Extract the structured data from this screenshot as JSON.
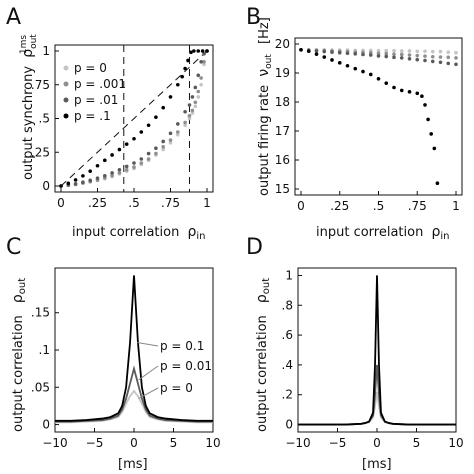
{
  "panels": {
    "A": {
      "letter": "A",
      "xlabel": "input correlation",
      "xlabel_symbol": "ρ",
      "xlabel_symbol_sub": "in",
      "ylabel": "output synchrony",
      "ylabel_symbol": "ρ",
      "ylabel_symbol_sub": "out",
      "ylabel_symbol_sup": "1ms",
      "xticks": [
        "0",
        ".25",
        ".5",
        ".75",
        "1"
      ],
      "yticks": [
        "0",
        ".25",
        ".5",
        ".75",
        "1"
      ],
      "legend": [
        "p = 0",
        "p = .001",
        "p = .01",
        "p = .1"
      ]
    },
    "B": {
      "letter": "B",
      "xlabel": "input correlation",
      "xlabel_symbol": "ρ",
      "xlabel_symbol_sub": "in",
      "ylabel": "output firing rate",
      "ylabel_symbol": "ν",
      "ylabel_symbol_sub": "out",
      "ylabel_unit": "[Hz]",
      "xticks": [
        "0",
        ".25",
        ".5",
        ".75",
        "1"
      ],
      "yticks": [
        "15",
        "16",
        "17",
        "18",
        "19",
        "20"
      ]
    },
    "C": {
      "letter": "C",
      "xlabel": "[ms]",
      "ylabel": "output correlation",
      "ylabel_symbol": "ρ",
      "ylabel_symbol_sub": "out",
      "xticks": [
        "−10",
        "−5",
        "0",
        "5",
        "10"
      ],
      "yticks": [
        "0",
        ".05",
        ".1",
        ".15"
      ],
      "labels": [
        "p = 0.1",
        "p = 0.01",
        "p = 0"
      ]
    },
    "D": {
      "letter": "D",
      "xlabel": "[ms]",
      "ylabel": "output correlation",
      "ylabel_symbol": "ρ",
      "ylabel_symbol_sub": "out",
      "xticks": [
        "−10",
        "−5",
        "0",
        "5",
        "10"
      ],
      "yticks": [
        "0",
        ".2",
        ".4",
        ".6",
        ".8",
        "1"
      ]
    }
  },
  "colors": {
    "p0": "#c4c4c4",
    "p001": "#8f8f8f",
    "p01": "#5a5a5a",
    "p1": "#000000"
  },
  "chart_data": [
    {
      "panel": "A",
      "type": "scatter",
      "xlim": [
        0,
        1
      ],
      "ylim": [
        0,
        1
      ],
      "reference_lines": [
        {
          "kind": "diagonal",
          "from": [
            0,
            0
          ],
          "to": [
            1,
            1
          ]
        },
        {
          "kind": "vertical",
          "x": 0.43
        },
        {
          "kind": "vertical",
          "x": 0.88
        }
      ],
      "series": [
        {
          "name": "p = 0",
          "color": "#c4c4c4",
          "x": [
            0,
            0.05,
            0.1,
            0.15,
            0.2,
            0.25,
            0.3,
            0.35,
            0.4,
            0.45,
            0.5,
            0.55,
            0.6,
            0.65,
            0.7,
            0.75,
            0.8,
            0.85,
            0.88,
            0.9,
            0.92,
            0.94,
            0.96,
            0.98,
            1.0
          ],
          "y": [
            0,
            0.005,
            0.01,
            0.02,
            0.03,
            0.04,
            0.055,
            0.07,
            0.09,
            0.11,
            0.13,
            0.16,
            0.19,
            0.23,
            0.27,
            0.32,
            0.38,
            0.45,
            0.5,
            0.54,
            0.59,
            0.66,
            0.75,
            0.9,
            1.0
          ]
        },
        {
          "name": "p = .001",
          "color": "#8f8f8f",
          "x": [
            0,
            0.05,
            0.1,
            0.15,
            0.2,
            0.25,
            0.3,
            0.35,
            0.4,
            0.45,
            0.5,
            0.55,
            0.6,
            0.65,
            0.7,
            0.75,
            0.8,
            0.85,
            0.88,
            0.9,
            0.92,
            0.94,
            0.96,
            0.98,
            1.0
          ],
          "y": [
            0,
            0.006,
            0.012,
            0.022,
            0.033,
            0.045,
            0.06,
            0.077,
            0.097,
            0.12,
            0.14,
            0.17,
            0.2,
            0.24,
            0.29,
            0.34,
            0.4,
            0.47,
            0.52,
            0.56,
            0.62,
            0.7,
            0.8,
            0.92,
            1.0
          ]
        },
        {
          "name": "p = .01",
          "color": "#5a5a5a",
          "x": [
            0,
            0.05,
            0.1,
            0.15,
            0.2,
            0.25,
            0.3,
            0.35,
            0.4,
            0.45,
            0.5,
            0.55,
            0.6,
            0.65,
            0.7,
            0.75,
            0.8,
            0.85,
            0.88,
            0.9,
            0.92,
            0.94,
            0.96,
            0.98,
            1.0
          ],
          "y": [
            0,
            0.008,
            0.016,
            0.028,
            0.042,
            0.058,
            0.076,
            0.097,
            0.12,
            0.145,
            0.17,
            0.2,
            0.24,
            0.28,
            0.33,
            0.39,
            0.46,
            0.55,
            0.6,
            0.66,
            0.73,
            0.82,
            0.92,
            0.98,
            1.0
          ]
        },
        {
          "name": "p = .1",
          "color": "#000000",
          "x": [
            0,
            0.05,
            0.1,
            0.15,
            0.2,
            0.25,
            0.3,
            0.35,
            0.4,
            0.45,
            0.5,
            0.55,
            0.6,
            0.65,
            0.7,
            0.75,
            0.8,
            0.83,
            0.85,
            0.87,
            0.89,
            0.91,
            0.94,
            0.97,
            1.0
          ],
          "y": [
            0,
            0.02,
            0.045,
            0.075,
            0.11,
            0.15,
            0.19,
            0.23,
            0.27,
            0.31,
            0.35,
            0.4,
            0.45,
            0.51,
            0.58,
            0.66,
            0.75,
            0.81,
            0.87,
            0.93,
            0.99,
            1.0,
            1.0,
            1.0,
            1.0
          ]
        }
      ]
    },
    {
      "panel": "B",
      "type": "scatter",
      "xlim": [
        0,
        1
      ],
      "ylim": [
        15,
        20
      ],
      "series": [
        {
          "name": "p = 0",
          "color": "#c4c4c4",
          "x": [
            0,
            0.05,
            0.1,
            0.15,
            0.2,
            0.25,
            0.3,
            0.35,
            0.4,
            0.45,
            0.5,
            0.55,
            0.6,
            0.65,
            0.7,
            0.75,
            0.8,
            0.85,
            0.9,
            0.95,
            1.0
          ],
          "y": [
            19.8,
            19.8,
            19.8,
            19.8,
            19.79,
            19.79,
            19.79,
            19.78,
            19.78,
            19.78,
            19.77,
            19.77,
            19.77,
            19.76,
            19.76,
            19.75,
            19.75,
            19.74,
            19.74,
            19.72,
            19.7
          ]
        },
        {
          "name": "p = .001",
          "color": "#8f8f8f",
          "x": [
            0,
            0.05,
            0.1,
            0.15,
            0.2,
            0.25,
            0.3,
            0.35,
            0.4,
            0.45,
            0.5,
            0.55,
            0.6,
            0.65,
            0.7,
            0.75,
            0.8,
            0.85,
            0.9,
            0.95,
            1.0
          ],
          "y": [
            19.8,
            19.79,
            19.78,
            19.77,
            19.76,
            19.75,
            19.74,
            19.72,
            19.71,
            19.7,
            19.68,
            19.67,
            19.65,
            19.64,
            19.62,
            19.6,
            19.58,
            19.56,
            19.55,
            19.54,
            19.52
          ]
        },
        {
          "name": "p = .01",
          "color": "#5a5a5a",
          "x": [
            0,
            0.05,
            0.1,
            0.15,
            0.2,
            0.25,
            0.3,
            0.35,
            0.4,
            0.45,
            0.5,
            0.55,
            0.6,
            0.65,
            0.7,
            0.75,
            0.8,
            0.85,
            0.9,
            0.95,
            1.0
          ],
          "y": [
            19.8,
            19.78,
            19.76,
            19.74,
            19.72,
            19.7,
            19.68,
            19.66,
            19.64,
            19.62,
            19.59,
            19.57,
            19.54,
            19.52,
            19.49,
            19.46,
            19.43,
            19.4,
            19.37,
            19.33,
            19.3
          ]
        },
        {
          "name": "p = .1",
          "color": "#000000",
          "x": [
            0,
            0.05,
            0.1,
            0.15,
            0.2,
            0.25,
            0.3,
            0.35,
            0.4,
            0.45,
            0.5,
            0.55,
            0.6,
            0.65,
            0.7,
            0.75,
            0.78,
            0.8,
            0.82,
            0.84,
            0.86,
            0.88
          ],
          "y": [
            19.8,
            19.75,
            19.65,
            19.55,
            19.45,
            19.35,
            19.25,
            19.15,
            19.05,
            18.95,
            18.8,
            18.65,
            18.5,
            18.4,
            18.35,
            18.3,
            18.2,
            17.9,
            17.4,
            16.9,
            16.4,
            15.2
          ]
        }
      ]
    },
    {
      "panel": "C",
      "type": "line",
      "xlim": [
        -10,
        10
      ],
      "ylim": [
        -0.01,
        0.21
      ],
      "x": [
        -10,
        -8,
        -6,
        -4,
        -3,
        -2,
        -1.5,
        -1,
        -0.5,
        0,
        0.5,
        1,
        1.5,
        2,
        3,
        4,
        6,
        8,
        10
      ],
      "series": [
        {
          "name": "p = 0.1",
          "color": "#000000",
          "values": [
            0.005,
            0.005,
            0.006,
            0.008,
            0.01,
            0.015,
            0.025,
            0.05,
            0.11,
            0.2,
            0.11,
            0.05,
            0.025,
            0.015,
            0.01,
            0.008,
            0.006,
            0.005,
            0.005
          ]
        },
        {
          "name": "p = 0.01",
          "color": "#5a5a5a",
          "values": [
            0.004,
            0.004,
            0.005,
            0.006,
            0.008,
            0.012,
            0.02,
            0.035,
            0.055,
            0.075,
            0.055,
            0.035,
            0.02,
            0.012,
            0.008,
            0.006,
            0.005,
            0.004,
            0.004
          ]
        },
        {
          "name": "p = 0",
          "color": "#c4c4c4",
          "values": [
            0.003,
            0.003,
            0.004,
            0.005,
            0.007,
            0.01,
            0.017,
            0.028,
            0.038,
            0.045,
            0.038,
            0.028,
            0.017,
            0.01,
            0.007,
            0.005,
            0.004,
            0.003,
            0.003
          ]
        }
      ]
    },
    {
      "panel": "D",
      "type": "line",
      "xlim": [
        -10,
        10
      ],
      "ylim": [
        -0.05,
        1.05
      ],
      "x": [
        -10,
        -8,
        -6,
        -4,
        -2,
        -1.5,
        -1,
        -0.5,
        -0.25,
        0,
        0.25,
        0.5,
        1,
        1.5,
        2,
        4,
        6,
        8,
        10
      ],
      "series": [
        {
          "name": "p = 0.1",
          "color": "#000000",
          "values": [
            0,
            0,
            0,
            0,
            0.005,
            0.01,
            0.02,
            0.08,
            0.4,
            1.0,
            0.4,
            0.08,
            0.02,
            0.01,
            0.005,
            0,
            0,
            0,
            0
          ]
        },
        {
          "name": "p = 0.01",
          "color": "#5a5a5a",
          "values": [
            0,
            0,
            0,
            0,
            0.005,
            0.01,
            0.02,
            0.06,
            0.2,
            0.4,
            0.2,
            0.06,
            0.02,
            0.01,
            0.005,
            0,
            0,
            0,
            0
          ]
        },
        {
          "name": "p = 0",
          "color": "#c4c4c4",
          "values": [
            0,
            0,
            0,
            0,
            0.004,
            0.008,
            0.015,
            0.05,
            0.12,
            0.22,
            0.12,
            0.05,
            0.015,
            0.008,
            0.004,
            0,
            0,
            0,
            0
          ]
        }
      ]
    }
  ]
}
